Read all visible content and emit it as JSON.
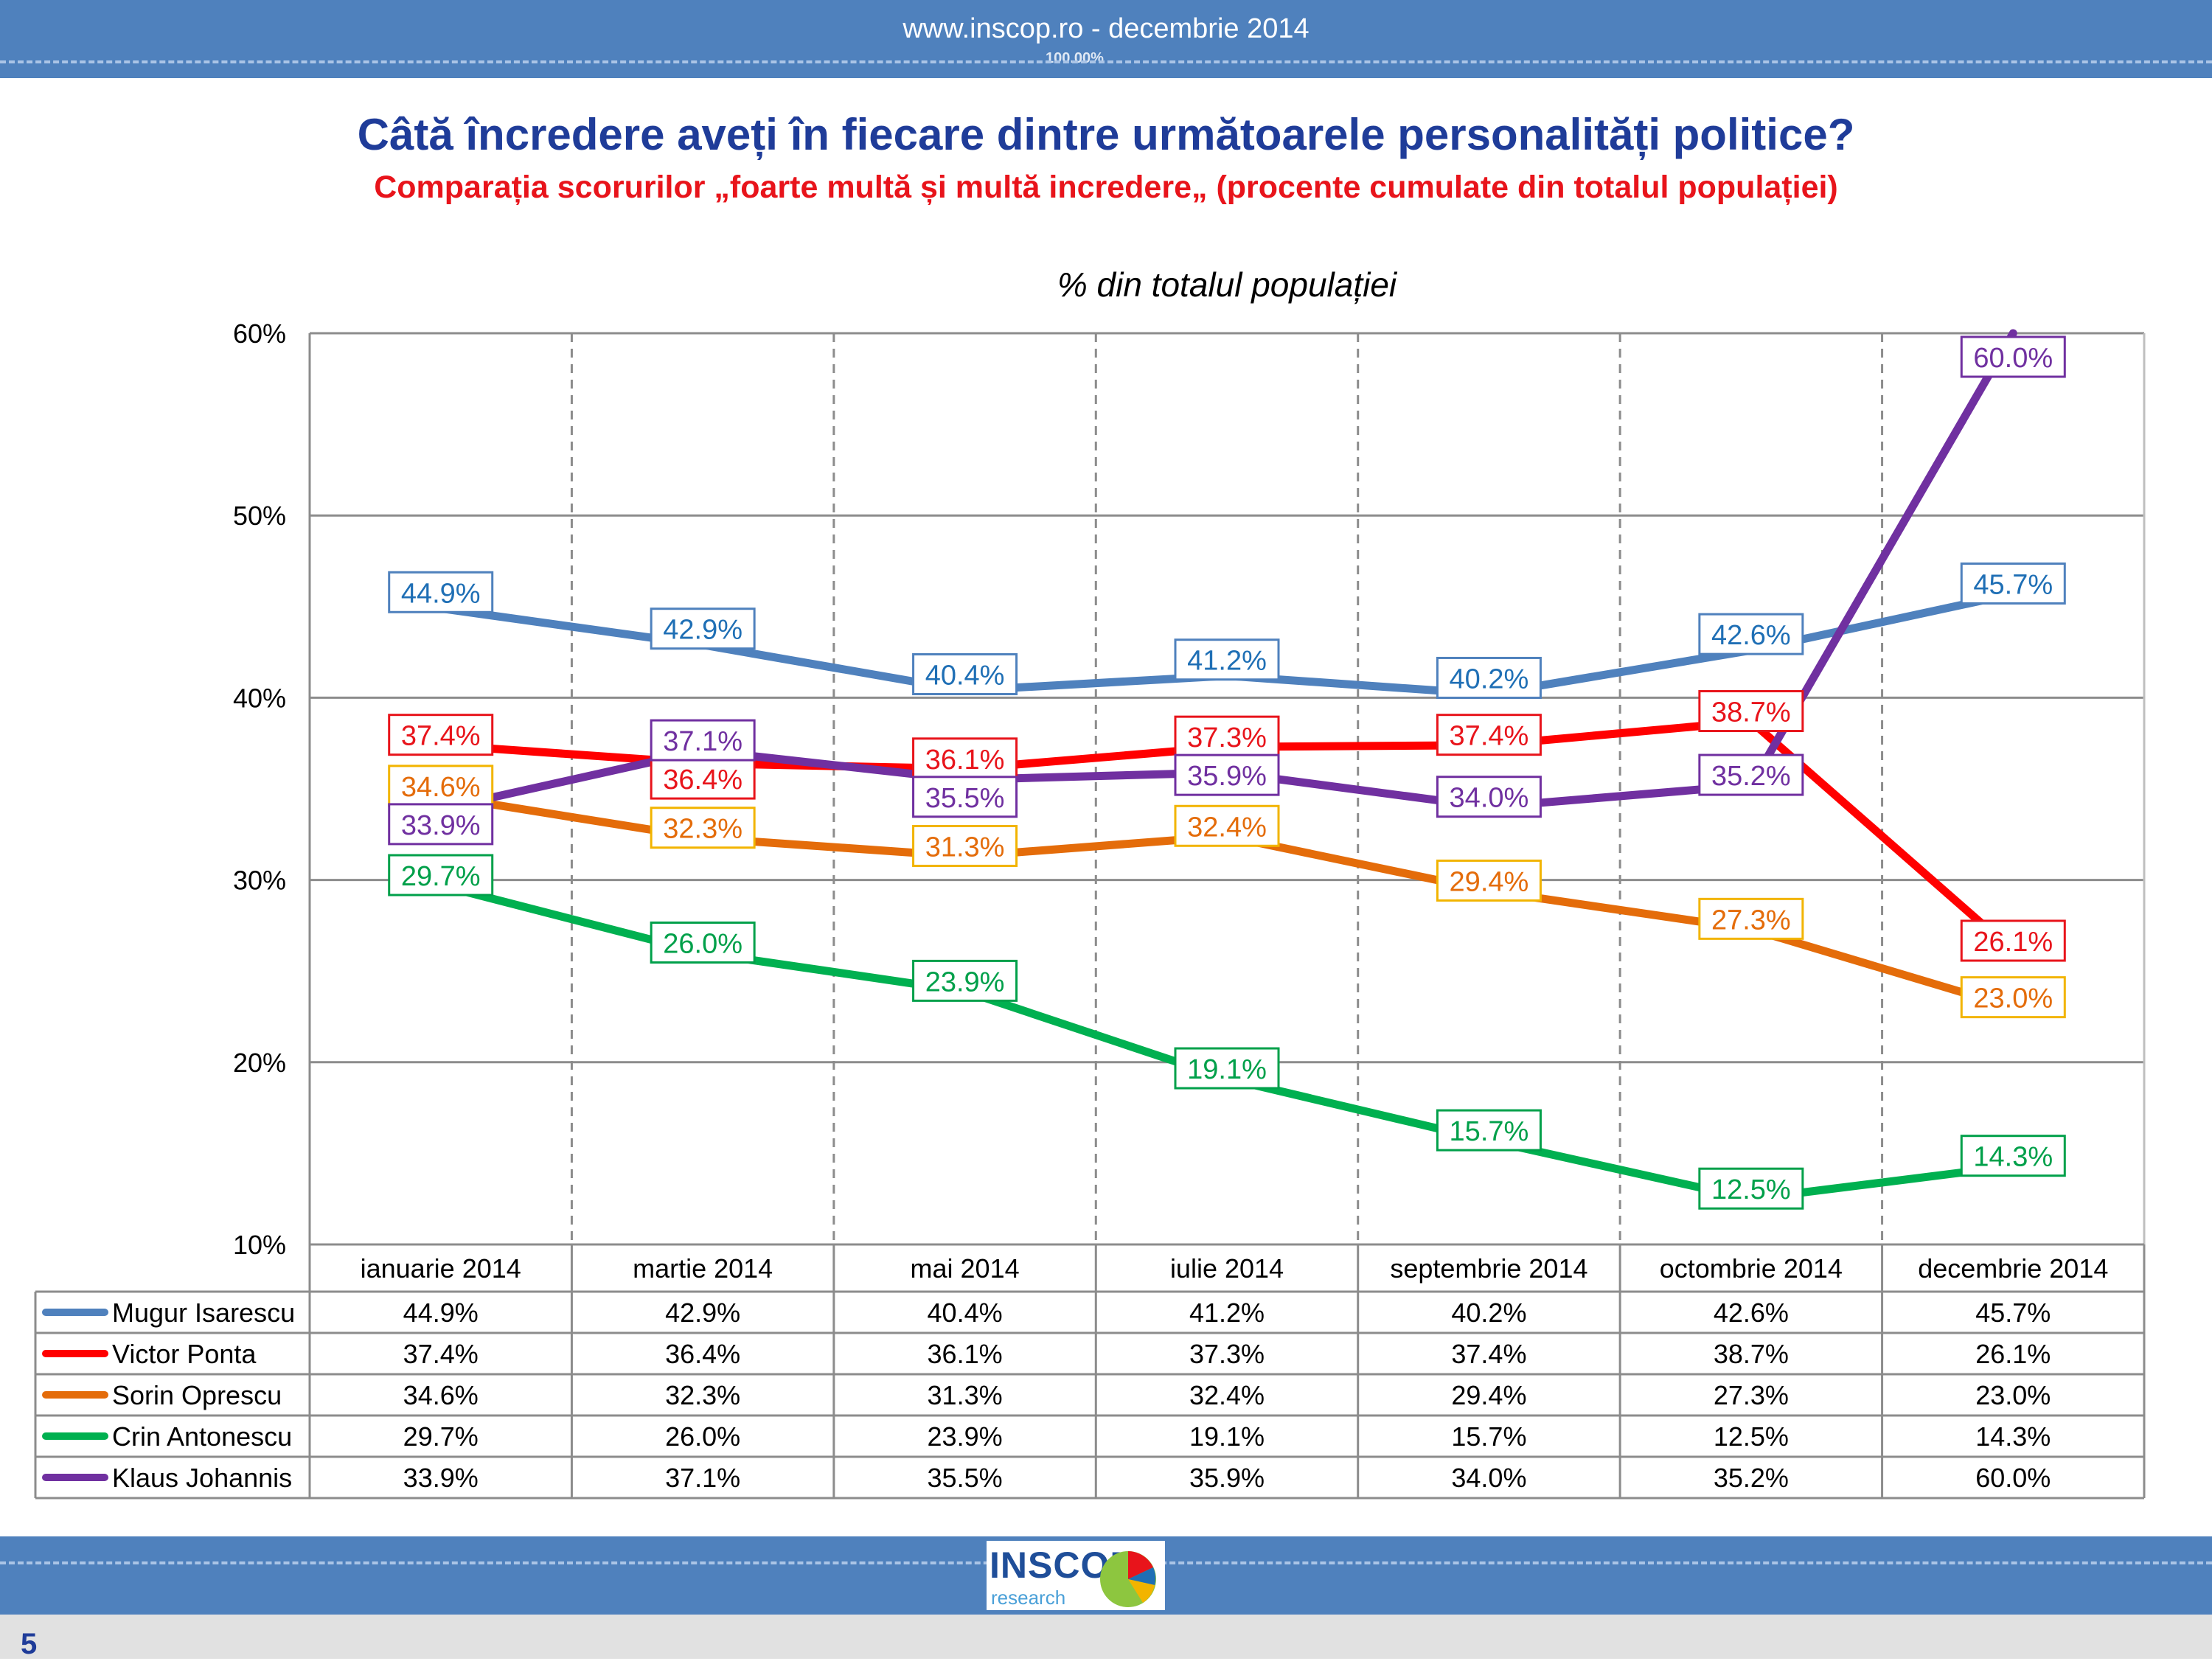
{
  "header": {
    "url_text": "www.inscop.ro   -   decembrie 2014",
    "zoom_text": "100.00%"
  },
  "title": "Câtă încredere aveți în fiecare dintre următoarele personalități politice?",
  "subtitle": "Comparația scorurilor „foarte multă și multă incredere„ (procente cumulate din totalul populației)",
  "footer": {
    "page_number": "5",
    "logo_main": "INSCOP",
    "logo_sub": "research"
  },
  "colors": {
    "bar": "#4f81bd",
    "title": "#1f3c99",
    "subtitle": "#e8141b"
  },
  "chart_data": {
    "type": "line",
    "title": "% din totalul populației",
    "xlabel": "",
    "ylabel": "",
    "ylim": [
      10,
      60
    ],
    "yticks": [
      "10%",
      "20%",
      "30%",
      "40%",
      "50%",
      "60%"
    ],
    "grid": true,
    "legend": "data-table-below",
    "categories": [
      "ianuarie 2014",
      "martie 2014",
      "mai 2014",
      "iulie 2014",
      "septembrie 2014",
      "octombrie 2014",
      "decembrie 2014"
    ],
    "series": [
      {
        "name": "Mugur Isarescu",
        "color": "#4f81bd",
        "label_color": "#1f6fb5",
        "box_color": "#4f81bd",
        "values": [
          44.9,
          42.9,
          40.4,
          41.2,
          40.2,
          42.6,
          45.7
        ]
      },
      {
        "name": "Victor Ponta",
        "color": "#ff0000",
        "label_color": "#e8141b",
        "box_color": "#e8141b",
        "values": [
          37.4,
          36.4,
          36.1,
          37.3,
          37.4,
          38.7,
          26.1
        ]
      },
      {
        "name": "Sorin Oprescu",
        "color": "#e46c0a",
        "label_color": "#e46c0a",
        "box_color": "#f2b400",
        "values": [
          34.6,
          32.3,
          31.3,
          32.4,
          29.4,
          27.3,
          23.0
        ]
      },
      {
        "name": "Crin Antonescu",
        "color": "#00b050",
        "label_color": "#00a04a",
        "box_color": "#00a04a",
        "values": [
          29.7,
          26.0,
          23.9,
          19.1,
          15.7,
          12.5,
          14.3
        ]
      },
      {
        "name": "Klaus Johannis",
        "color": "#7030a0",
        "label_color": "#7030a0",
        "box_color": "#7030a0",
        "values": [
          33.9,
          37.1,
          35.5,
          35.9,
          34.0,
          35.2,
          60.0
        ]
      }
    ]
  }
}
